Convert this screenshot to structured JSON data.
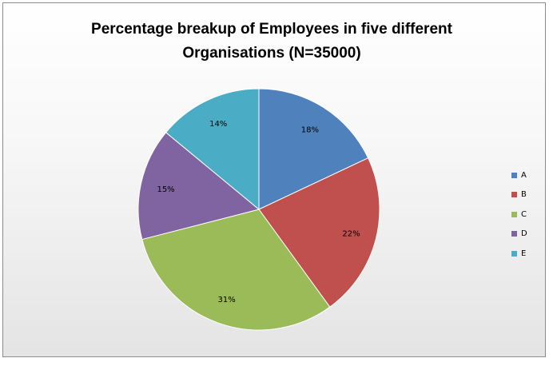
{
  "chart_data": {
    "type": "pie",
    "title": "Percentage breakup of Employees in five different Organisations (N=35000)",
    "title_lines": [
      "Percentage breakup of Employees in five different",
      "Organisations (N=35000)"
    ],
    "categories": [
      "A",
      "B",
      "C",
      "D",
      "E"
    ],
    "values": [
      18,
      22,
      31,
      15,
      14
    ],
    "value_labels": [
      "18%",
      "22%",
      "31%",
      "15%",
      "14%"
    ],
    "colors": [
      "#4f81bd",
      "#c0504d",
      "#9bbb59",
      "#8064a2",
      "#4bacc6"
    ],
    "start_angle_deg": 0,
    "direction": "clockwise",
    "legend_position": "right"
  }
}
